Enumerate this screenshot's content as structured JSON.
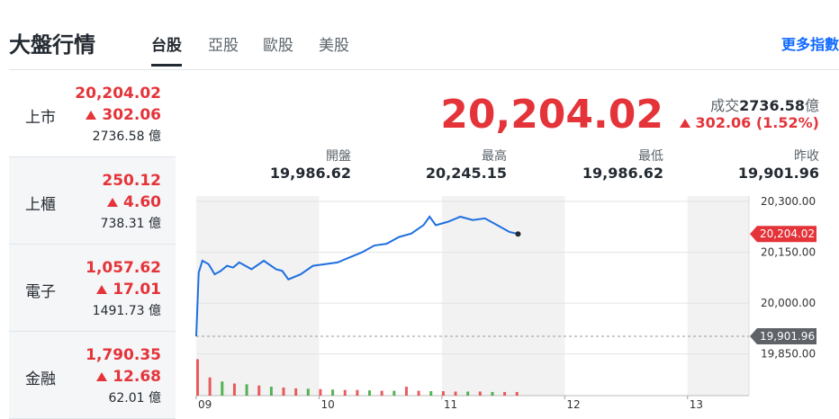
{
  "header": {
    "title": "大盤行情",
    "tabs": [
      "台股",
      "亞股",
      "歐股",
      "美股"
    ],
    "more": "更多指數"
  },
  "markets": [
    {
      "name": "上市",
      "price": "20,204.02",
      "change": "302.06",
      "volume": "2736.58 億"
    },
    {
      "name": "上櫃",
      "price": "250.12",
      "change": "4.60",
      "volume": "738.31 億"
    },
    {
      "name": "電子",
      "price": "1,057.62",
      "change": "17.01",
      "volume": "1491.73 億"
    },
    {
      "name": "金融",
      "price": "1,790.35",
      "change": "12.68",
      "volume": "62.01 億"
    }
  ],
  "summary": {
    "price": "20,204.02",
    "turnover_label": "成交",
    "turnover": "2736.58",
    "turnover_unit": "億",
    "change": "302.06 (1.52%)",
    "stats": [
      {
        "label": "開盤",
        "value": "19,986.62"
      },
      {
        "label": "最高",
        "value": "20,245.15"
      },
      {
        "label": "最低",
        "value": "19,986.62"
      },
      {
        "label": "昨收",
        "value": "19,901.96"
      }
    ]
  },
  "chart_data": {
    "type": "line",
    "color": "#1e6fe0",
    "x": [
      9.0,
      9.02,
      9.05,
      9.1,
      9.15,
      9.2,
      9.25,
      9.3,
      9.35,
      9.4,
      9.45,
      9.55,
      9.65,
      9.7,
      9.75,
      9.85,
      9.95,
      10.05,
      10.15,
      10.25,
      10.35,
      10.45,
      10.55,
      10.65,
      10.75,
      10.85,
      10.9,
      10.95,
      11.05,
      11.15,
      11.25,
      11.35,
      11.45,
      11.55,
      11.62
    ],
    "values": [
      19902,
      20090,
      20125,
      20115,
      20085,
      20095,
      20110,
      20105,
      20120,
      20110,
      20100,
      20125,
      20100,
      20095,
      20070,
      20085,
      20110,
      20115,
      20120,
      20135,
      20150,
      20170,
      20175,
      20195,
      20205,
      20230,
      20255,
      20230,
      20240,
      20255,
      20245,
      20250,
      20230,
      20210,
      20204.02
    ],
    "xlim": [
      9,
      13.5
    ],
    "xticks": [
      {
        "value": 9,
        "label": "09"
      },
      {
        "value": 10,
        "label": "10"
      },
      {
        "value": 11,
        "label": "11"
      },
      {
        "value": 12,
        "label": "12"
      },
      {
        "value": 13,
        "label": "13"
      }
    ],
    "ylim": [
      19727,
      20316
    ],
    "yticks": [
      {
        "value": 19850,
        "label": "19,850.00"
      },
      {
        "value": 20000,
        "label": "20,000.00"
      },
      {
        "value": 20150,
        "label": "20,150.00"
      },
      {
        "value": 20300,
        "label": "20,300.00"
      }
    ],
    "grid": true,
    "annotations": [
      {
        "value": 20204.02,
        "label": "20,204.02",
        "color": "#e4343a"
      },
      {
        "value": 19901.96,
        "label": "19,901.96",
        "color": "#5f6368"
      }
    ],
    "volume": {
      "vlim": [
        0,
        100
      ],
      "x": [
        9.0,
        9.1,
        9.2,
        9.3,
        9.4,
        9.5,
        9.6,
        9.7,
        9.8,
        9.9,
        10.0,
        10.1,
        10.2,
        10.3,
        10.4,
        10.5,
        10.6,
        10.7,
        10.8,
        10.9,
        11.0,
        11.1,
        11.2,
        11.3,
        11.4,
        11.5,
        11.6
      ],
      "values": [
        90,
        45,
        35,
        30,
        28,
        25,
        22,
        20,
        18,
        17,
        16,
        15,
        14,
        14,
        13,
        12,
        12,
        22,
        12,
        11,
        11,
        10,
        10,
        10,
        9,
        9,
        9
      ],
      "colors": [
        "#e4343a",
        "#e4343a",
        "#2ca02c",
        "#e4343a",
        "#2ca02c",
        "#e4343a",
        "#2ca02c",
        "#e4343a",
        "#e4343a",
        "#2ca02c",
        "#e4343a",
        "#2ca02c",
        "#e4343a",
        "#e4343a",
        "#2ca02c",
        "#e4343a",
        "#2ca02c",
        "#e4343a",
        "#e4343a",
        "#2ca02c",
        "#e4343a",
        "#e4343a",
        "#2ca02c",
        "#e4343a",
        "#2ca02c",
        "#e4343a",
        "#e4343a"
      ]
    }
  }
}
